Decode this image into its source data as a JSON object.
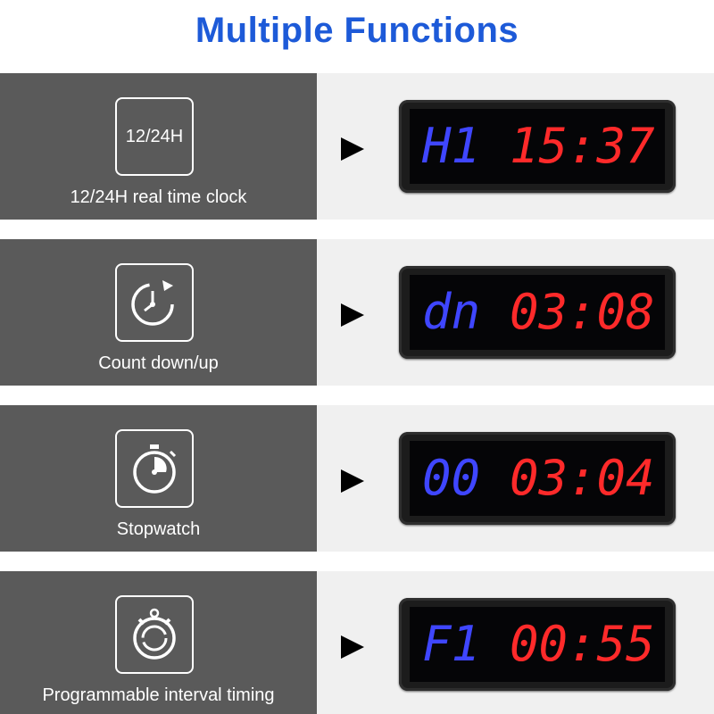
{
  "title": "Multiple Functions",
  "colors": {
    "title": "#1d5ad8",
    "blue_digits": "#3f46ff",
    "red_digits": "#ff2a2a",
    "left_panel": "#5a5a5a",
    "right_panel": "#f0f0f0"
  },
  "rows": [
    {
      "icon": "12-24h-text-icon",
      "icon_text": "12/24H",
      "label": "12/24H real time clock",
      "display": {
        "blue": "H1",
        "red": "15:37"
      }
    },
    {
      "icon": "countdown-clock-icon",
      "label": "Count down/up",
      "display": {
        "blue": "dn",
        "red": "03:08"
      }
    },
    {
      "icon": "stopwatch-icon",
      "label": "Stopwatch",
      "display": {
        "blue": "00",
        "red": "03:04"
      }
    },
    {
      "icon": "interval-timer-icon",
      "label": "Programmable interval timing",
      "display": {
        "blue": "F1",
        "red": "00:55"
      }
    }
  ]
}
